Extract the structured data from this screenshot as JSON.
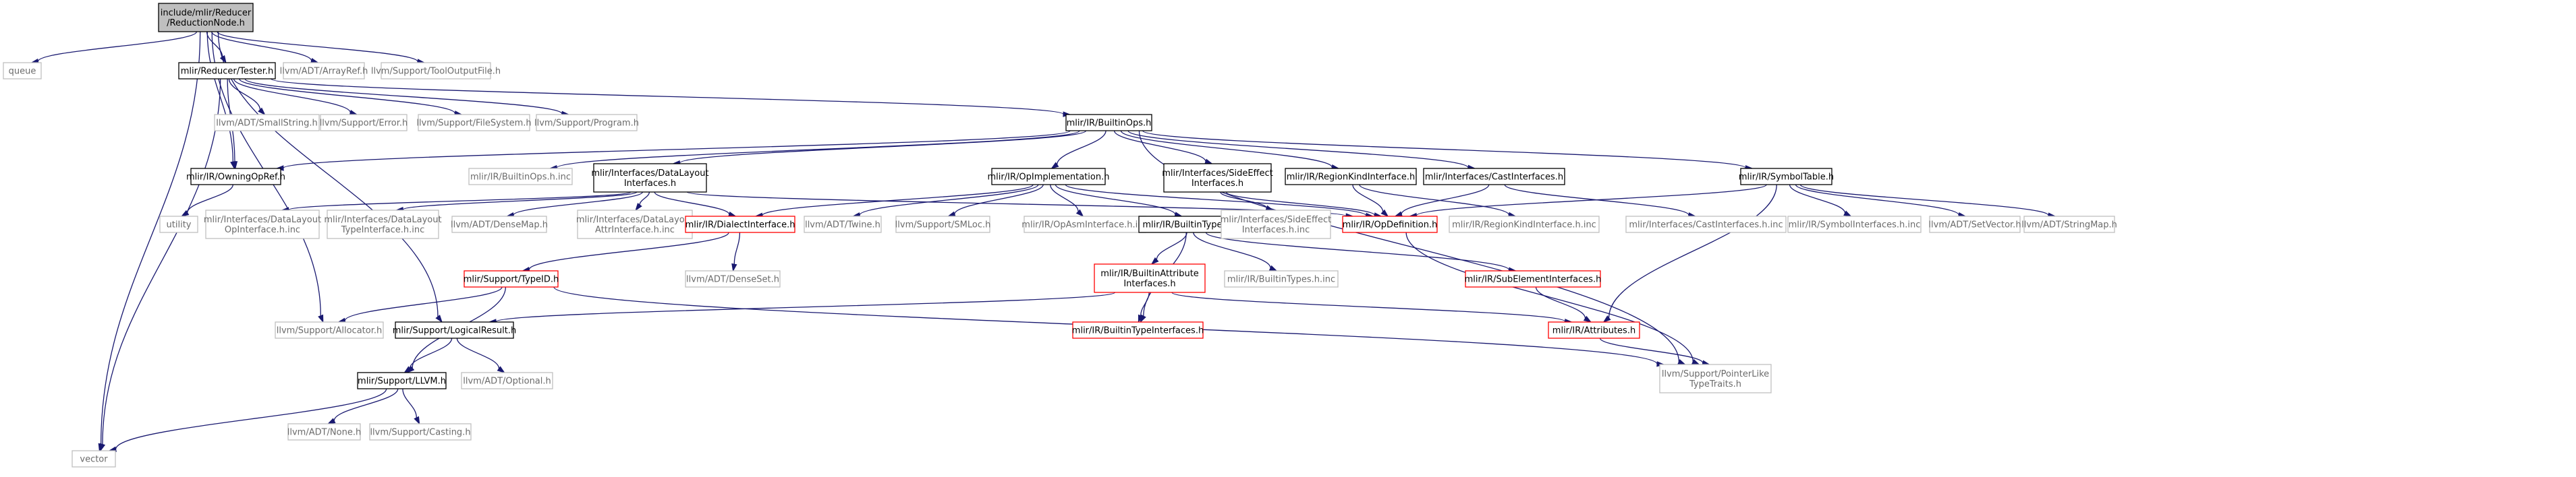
{
  "graph": {
    "colors": {
      "edge": "#191970",
      "root_fill": "#bfbfbf",
      "external_border": "#bfbfbf",
      "truncated_border": "#ff0000"
    },
    "nodes": [
      {
        "id": "root",
        "lines": [
          "include/mlir/Reducer",
          "/ReductionNode.h"
        ],
        "kind": "root"
      },
      {
        "id": "queue",
        "lines": [
          "queue"
        ],
        "kind": "ext"
      },
      {
        "id": "vector",
        "lines": [
          "vector"
        ],
        "kind": "ext"
      },
      {
        "id": "tester",
        "lines": [
          "mlir/Reducer/Tester.h"
        ],
        "kind": "doc"
      },
      {
        "id": "arrayref",
        "lines": [
          "llvm/ADT/ArrayRef.h"
        ],
        "kind": "ext"
      },
      {
        "id": "tooloutput",
        "lines": [
          "llvm/Support/ToolOutputFile.h"
        ],
        "kind": "ext"
      },
      {
        "id": "smallstring",
        "lines": [
          "llvm/ADT/SmallString.h"
        ],
        "kind": "ext"
      },
      {
        "id": "error",
        "lines": [
          "llvm/Support/Error.h"
        ],
        "kind": "ext"
      },
      {
        "id": "filesystem",
        "lines": [
          "llvm/Support/FileSystem.h"
        ],
        "kind": "ext"
      },
      {
        "id": "program",
        "lines": [
          "llvm/Support/Program.h"
        ],
        "kind": "ext"
      },
      {
        "id": "builtinops",
        "lines": [
          "mlir/IR/BuiltinOps.h"
        ],
        "kind": "doc"
      },
      {
        "id": "owningopref",
        "lines": [
          "mlir/IR/OwningOpRef.h"
        ],
        "kind": "doc"
      },
      {
        "id": "builtinopsinc",
        "lines": [
          "mlir/IR/BuiltinOps.h.inc"
        ],
        "kind": "ext"
      },
      {
        "id": "dli",
        "lines": [
          "mlir/Interfaces/DataLayout",
          "Interfaces.h"
        ],
        "kind": "doc"
      },
      {
        "id": "opimpl",
        "lines": [
          "mlir/IR/OpImplementation.h"
        ],
        "kind": "doc"
      },
      {
        "id": "sei",
        "lines": [
          "mlir/Interfaces/SideEffect",
          "Interfaces.h"
        ],
        "kind": "doc"
      },
      {
        "id": "regionkind",
        "lines": [
          "mlir/IR/RegionKindInterface.h"
        ],
        "kind": "doc"
      },
      {
        "id": "castif",
        "lines": [
          "mlir/Interfaces/CastInterfaces.h"
        ],
        "kind": "doc"
      },
      {
        "id": "symtable",
        "lines": [
          "mlir/IR/SymbolTable.h"
        ],
        "kind": "doc"
      },
      {
        "id": "utility",
        "lines": [
          "utility"
        ],
        "kind": "ext"
      },
      {
        "id": "dlopif",
        "lines": [
          "mlir/Interfaces/DataLayout",
          "OpInterface.h.inc"
        ],
        "kind": "ext"
      },
      {
        "id": "dltypeif",
        "lines": [
          "mlir/Interfaces/DataLayout",
          "TypeInterface.h.inc"
        ],
        "kind": "ext"
      },
      {
        "id": "densemap",
        "lines": [
          "llvm/ADT/DenseMap.h"
        ],
        "kind": "ext"
      },
      {
        "id": "dlattrif",
        "lines": [
          "mlir/Interfaces/DataLayout",
          "AttrInterface.h.inc"
        ],
        "kind": "ext"
      },
      {
        "id": "dialectif",
        "lines": [
          "mlir/IR/DialectInterface.h"
        ],
        "kind": "trunc"
      },
      {
        "id": "twine",
        "lines": [
          "llvm/ADT/Twine.h"
        ],
        "kind": "ext"
      },
      {
        "id": "smloc",
        "lines": [
          "llvm/Support/SMLoc.h"
        ],
        "kind": "ext"
      },
      {
        "id": "opasmif",
        "lines": [
          "mlir/IR/OpAsmInterface.h.inc"
        ],
        "kind": "ext"
      },
      {
        "id": "builtintypes",
        "lines": [
          "mlir/IR/BuiltinTypes.h"
        ],
        "kind": "doc"
      },
      {
        "id": "seiinc",
        "lines": [
          "mlir/Interfaces/SideEffect",
          "Interfaces.h.inc"
        ],
        "kind": "ext"
      },
      {
        "id": "opdef",
        "lines": [
          "mlir/IR/OpDefinition.h"
        ],
        "kind": "trunc"
      },
      {
        "id": "regionkindinc",
        "lines": [
          "mlir/IR/RegionKindInterface.h.inc"
        ],
        "kind": "ext"
      },
      {
        "id": "castifinc",
        "lines": [
          "mlir/Interfaces/CastInterfaces.h.inc"
        ],
        "kind": "ext"
      },
      {
        "id": "symifinc",
        "lines": [
          "mlir/IR/SymbolInterfaces.h.inc"
        ],
        "kind": "ext"
      },
      {
        "id": "setvector",
        "lines": [
          "llvm/ADT/SetVector.h"
        ],
        "kind": "ext"
      },
      {
        "id": "stringmap",
        "lines": [
          "llvm/ADT/StringMap.h"
        ],
        "kind": "ext"
      },
      {
        "id": "typeid",
        "lines": [
          "mlir/Support/TypeID.h"
        ],
        "kind": "trunc"
      },
      {
        "id": "denseset",
        "lines": [
          "llvm/ADT/DenseSet.h"
        ],
        "kind": "ext"
      },
      {
        "id": "builtinattrif",
        "lines": [
          "mlir/IR/BuiltinAttribute",
          "Interfaces.h"
        ],
        "kind": "trunc"
      },
      {
        "id": "builtintypesinc",
        "lines": [
          "mlir/IR/BuiltinTypes.h.inc"
        ],
        "kind": "ext"
      },
      {
        "id": "subelem",
        "lines": [
          "mlir/IR/SubElementInterfaces.h"
        ],
        "kind": "trunc"
      },
      {
        "id": "allocator",
        "lines": [
          "llvm/Support/Allocator.h"
        ],
        "kind": "ext"
      },
      {
        "id": "logicalresult",
        "lines": [
          "mlir/Support/LogicalResult.h"
        ],
        "kind": "doc"
      },
      {
        "id": "builtintypeif",
        "lines": [
          "mlir/IR/BuiltinTypeInterfaces.h"
        ],
        "kind": "trunc"
      },
      {
        "id": "attributes",
        "lines": [
          "mlir/IR/Attributes.h"
        ],
        "kind": "trunc"
      },
      {
        "id": "optional",
        "lines": [
          "llvm/ADT/Optional.h"
        ],
        "kind": "ext"
      },
      {
        "id": "ptrlike",
        "lines": [
          "llvm/Support/PointerLike",
          "TypeTraits.h"
        ],
        "kind": "ext"
      },
      {
        "id": "llvmh",
        "lines": [
          "mlir/Support/LLVM.h"
        ],
        "kind": "doc"
      },
      {
        "id": "none",
        "lines": [
          "llvm/ADT/None.h"
        ],
        "kind": "ext"
      },
      {
        "id": "casting",
        "lines": [
          "llvm/Support/Casting.h"
        ],
        "kind": "ext"
      }
    ],
    "edges": [
      [
        "root",
        "queue"
      ],
      [
        "root",
        "vector"
      ],
      [
        "root",
        "tester"
      ],
      [
        "root",
        "arrayref"
      ],
      [
        "root",
        "tooloutput"
      ],
      [
        "root",
        "owningopref"
      ],
      [
        "root",
        "allocator"
      ],
      [
        "root",
        "logicalresult"
      ],
      [
        "tester",
        "vector"
      ],
      [
        "tester",
        "builtinops"
      ],
      [
        "tester",
        "owningopref"
      ],
      [
        "tester",
        "smallstring"
      ],
      [
        "tester",
        "error"
      ],
      [
        "tester",
        "filesystem"
      ],
      [
        "tester",
        "program"
      ],
      [
        "builtinops",
        "owningopref"
      ],
      [
        "builtinops",
        "builtinopsinc"
      ],
      [
        "builtinops",
        "dli"
      ],
      [
        "builtinops",
        "opimpl"
      ],
      [
        "builtinops",
        "sei"
      ],
      [
        "builtinops",
        "regionkind"
      ],
      [
        "builtinops",
        "castif"
      ],
      [
        "builtinops",
        "symtable"
      ],
      [
        "builtinops",
        "ptrlike"
      ],
      [
        "owningopref",
        "utility"
      ],
      [
        "dli",
        "dlopif"
      ],
      [
        "dli",
        "dltypeif"
      ],
      [
        "dli",
        "densemap"
      ],
      [
        "dli",
        "dlattrif"
      ],
      [
        "dli",
        "dialectif"
      ],
      [
        "dli",
        "opdef"
      ],
      [
        "opimpl",
        "dialectif"
      ],
      [
        "opimpl",
        "twine"
      ],
      [
        "opimpl",
        "smloc"
      ],
      [
        "opimpl",
        "opasmif"
      ],
      [
        "opimpl",
        "builtintypes"
      ],
      [
        "opimpl",
        "opdef"
      ],
      [
        "sei",
        "seiinc"
      ],
      [
        "sei",
        "opdef"
      ],
      [
        "regionkind",
        "opdef"
      ],
      [
        "regionkind",
        "regionkindinc"
      ],
      [
        "castif",
        "opdef"
      ],
      [
        "castif",
        "castifinc"
      ],
      [
        "symtable",
        "opdef"
      ],
      [
        "symtable",
        "symifinc"
      ],
      [
        "symtable",
        "setvector"
      ],
      [
        "symtable",
        "stringmap"
      ],
      [
        "symtable",
        "attributes"
      ],
      [
        "dialectif",
        "typeid"
      ],
      [
        "dialectif",
        "denseset"
      ],
      [
        "builtintypes",
        "builtinattrif"
      ],
      [
        "builtintypes",
        "builtintypesinc"
      ],
      [
        "builtintypes",
        "subelem"
      ],
      [
        "builtintypes",
        "builtintypeif"
      ],
      [
        "opdef",
        "ptrlike"
      ],
      [
        "typeid",
        "allocator"
      ],
      [
        "typeid",
        "llvmh"
      ],
      [
        "typeid",
        "ptrlike"
      ],
      [
        "builtinattrif",
        "logicalresult"
      ],
      [
        "builtinattrif",
        "builtintypeif"
      ],
      [
        "builtinattrif",
        "attributes"
      ],
      [
        "subelem",
        "attributes"
      ],
      [
        "attributes",
        "ptrlike"
      ],
      [
        "logicalresult",
        "llvmh"
      ],
      [
        "logicalresult",
        "optional"
      ],
      [
        "llvmh",
        "vector"
      ],
      [
        "llvmh",
        "none"
      ],
      [
        "llvmh",
        "casting"
      ]
    ]
  }
}
